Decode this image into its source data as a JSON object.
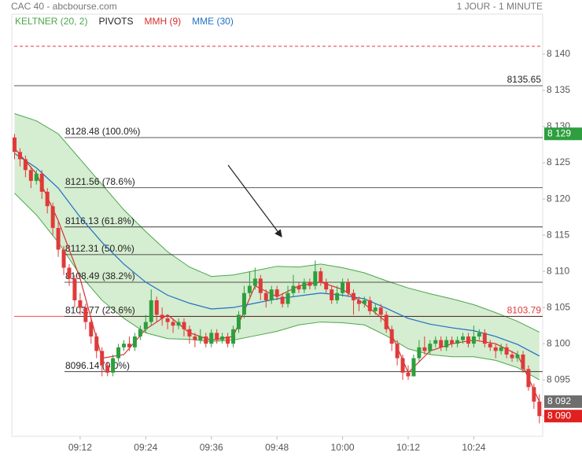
{
  "header": {
    "title": "CAC 40 - abcbourse.com",
    "period": "1 JOUR - 1 MINUTE"
  },
  "chart_data": {
    "type": "candlestick",
    "up_color": "#2e9e3e",
    "down_color": "#e03a3a",
    "x": [
      0,
      1,
      2,
      3,
      4,
      5,
      6,
      7,
      8,
      9,
      10,
      11,
      12,
      13,
      14,
      15,
      16,
      17,
      18,
      19,
      20,
      21,
      22,
      23,
      24,
      25,
      26,
      27,
      28,
      29,
      30,
      31,
      32,
      33,
      34,
      35,
      36,
      37,
      38,
      39,
      40,
      41,
      42,
      43,
      44,
      45,
      46,
      47,
      48,
      49,
      50,
      51,
      52,
      53,
      54,
      55,
      56,
      57,
      58,
      59,
      60,
      61,
      62,
      63,
      64,
      65,
      66,
      67,
      68,
      69,
      70,
      71,
      72,
      73,
      74,
      75,
      76,
      77,
      78,
      79,
      80,
      81,
      82,
      83,
      84,
      85,
      86,
      87,
      88,
      89,
      90,
      91,
      92,
      93,
      94,
      95,
      96
    ],
    "open": [
      8128.5,
      8126.5,
      8125.5,
      8124,
      8122.5,
      8123.5,
      8121,
      8119,
      8116,
      8113,
      8110.5,
      8109,
      8106,
      8105,
      8103,
      8101,
      8099,
      8097,
      8096,
      8098,
      8099.5,
      8100,
      8099.5,
      8101,
      8102,
      8103,
      8106,
      8104,
      8103.5,
      8103,
      8102.5,
      8103,
      8102,
      8101,
      8100.5,
      8101,
      8100,
      8101.5,
      8100.5,
      8101,
      8100,
      8102,
      8104,
      8107,
      8108,
      8109,
      8107,
      8106,
      8107.5,
      8106.5,
      8105.5,
      8107,
      8108,
      8107.5,
      8108.5,
      8108,
      8110,
      8108.5,
      8107.5,
      8106,
      8107,
      8108.5,
      8107,
      8106,
      8105.5,
      8106,
      8104.5,
      8105,
      8104,
      8102,
      8100,
      8098,
      8096,
      8095.5,
      8098,
      8099.5,
      8099,
      8100,
      8100.5,
      8099.5,
      8100.5,
      8100,
      8100.5,
      8101,
      8100,
      8101,
      8101.5,
      8100,
      8099.5,
      8099,
      8099.5,
      8098.5,
      8098,
      8098.5,
      8096.5,
      8094,
      8092
    ],
    "high": [
      8129,
      8127,
      8126,
      8124.5,
      8124,
      8124,
      8121.5,
      8119.5,
      8117,
      8113.5,
      8111,
      8109.5,
      8107,
      8105.5,
      8103.5,
      8101.5,
      8099.5,
      8097.5,
      8098.5,
      8100,
      8100.5,
      8101,
      8101.5,
      8102.5,
      8104,
      8107.5,
      8106.5,
      8105,
      8104,
      8103.5,
      8103.5,
      8103.5,
      8102.5,
      8101.5,
      8102,
      8101.5,
      8102,
      8102,
      8101.5,
      8101.5,
      8102.5,
      8104.5,
      8108,
      8110,
      8110.5,
      8109.5,
      8107.5,
      8108,
      8108,
      8107,
      8108,
      8109.5,
      8108.5,
      8109,
      8109,
      8111.5,
      8110.5,
      8109,
      8108,
      8108,
      8109,
      8109,
      8107.5,
      8106.5,
      8106.5,
      8106.5,
      8105.5,
      8105.5,
      8104.5,
      8102.5,
      8100.5,
      8098.5,
      8097,
      8098.5,
      8100.5,
      8101,
      8100.5,
      8101,
      8101,
      8101,
      8101,
      8101,
      8101.5,
      8101.5,
      8102.5,
      8102,
      8102,
      8100.5,
      8100,
      8100,
      8100,
      8099,
      8099,
      8099,
      8097,
      8094.5,
      8093
    ],
    "low": [
      8125.5,
      8124.5,
      8123,
      8121.5,
      8122,
      8120,
      8118,
      8115,
      8112,
      8109.5,
      8108,
      8105,
      8104,
      8102,
      8100,
      8098,
      8095.5,
      8095.5,
      8095.5,
      8097.5,
      8099,
      8099,
      8099,
      8100.5,
      8101.5,
      8102.5,
      8103,
      8102.5,
      8102,
      8101.5,
      8102,
      8101,
      8100,
      8099.5,
      8100,
      8099.5,
      8099.5,
      8100,
      8100,
      8099.5,
      8099.5,
      8101.5,
      8103.5,
      8106.5,
      8107.5,
      8106,
      8105,
      8105.5,
      8106,
      8105,
      8105,
      8106.5,
      8107,
      8107,
      8107.5,
      8107.5,
      8108,
      8107,
      8105.5,
      8105.5,
      8106.5,
      8106.5,
      8104,
      8104.5,
      8105,
      8104,
      8104,
      8103,
      8101.5,
      8099,
      8097,
      8095,
      8095,
      8095.5,
      8097.5,
      8098.5,
      8098.5,
      8099.5,
      8099,
      8099,
      8099.5,
      8099.5,
      8100,
      8099.5,
      8099.5,
      8100.5,
      8099.5,
      8099,
      8098,
      8098.5,
      8098,
      8097.5,
      8097.5,
      8096,
      8093.5,
      8091,
      8089
    ],
    "close": [
      8126.5,
      8125.5,
      8124,
      8122.5,
      8123.5,
      8121,
      8119,
      8116,
      8113,
      8110.5,
      8109,
      8106,
      8105,
      8103,
      8101,
      8099,
      8097,
      8096,
      8098,
      8099.5,
      8100,
      8099.5,
      8101,
      8102,
      8103,
      8106,
      8104,
      8103.5,
      8103,
      8102.5,
      8103,
      8102,
      8101,
      8100.5,
      8101,
      8100,
      8101.5,
      8100.5,
      8101,
      8100,
      8102,
      8104,
      8107,
      8108,
      8109,
      8107,
      8106,
      8107.5,
      8106.5,
      8105.5,
      8107,
      8108,
      8107.5,
      8108.5,
      8108,
      8110,
      8108.5,
      8107.5,
      8106,
      8107,
      8108.5,
      8107,
      8106,
      8105.5,
      8106,
      8104.5,
      8105,
      8104,
      8102,
      8100,
      8098,
      8096,
      8095.5,
      8098,
      8099.5,
      8099,
      8100,
      8100.5,
      8099.5,
      8100.5,
      8100,
      8100.5,
      8101,
      8100,
      8101,
      8101.5,
      8100,
      8099.5,
      8099,
      8099.5,
      8098.5,
      8098,
      8098.5,
      8096.5,
      8094,
      8092,
      8090
    ],
    "xlim": [
      -0.5,
      96.6
    ],
    "xticks": [
      {
        "value": 12,
        "label": "09:12"
      },
      {
        "value": 24,
        "label": "09:24"
      },
      {
        "value": 36,
        "label": "09:36"
      },
      {
        "value": 48,
        "label": "09:48"
      },
      {
        "value": 60,
        "label": "10:00"
      },
      {
        "value": 72,
        "label": "10:12"
      },
      {
        "value": 84,
        "label": "10:24"
      }
    ],
    "ylim": [
      8087.2,
      8143.15
    ],
    "yticks": [
      {
        "value": 8090,
        "label": "8 090"
      },
      {
        "value": 8095,
        "label": "8 095"
      },
      {
        "value": 8100,
        "label": "8 100"
      },
      {
        "value": 8105,
        "label": "8 105"
      },
      {
        "value": 8110,
        "label": "8 110"
      },
      {
        "value": 8115,
        "label": "8 115"
      },
      {
        "value": 8120,
        "label": "8 120"
      },
      {
        "value": 8125,
        "label": "8 125"
      },
      {
        "value": 8130,
        "label": "8 130"
      },
      {
        "value": 8135,
        "label": "8 135"
      },
      {
        "value": 8140,
        "label": "8 140"
      }
    ],
    "keltner": {
      "name": "KELTNER (20, 2)",
      "color": "#4ca64c",
      "fill": "#cbe8c4",
      "x": [
        0,
        4,
        8,
        12,
        16,
        20,
        24,
        28,
        32,
        36,
        40,
        44,
        48,
        52,
        56,
        60,
        64,
        68,
        72,
        76,
        80,
        84,
        88,
        92,
        96
      ],
      "upper": [
        8131.8,
        8130.8,
        8129,
        8125.5,
        8122,
        8118.5,
        8115.5,
        8112.7,
        8110.6,
        8109.3,
        8109.5,
        8110.1,
        8110.7,
        8110.6,
        8111,
        8110.5,
        8109.8,
        8108.7,
        8107.7,
        8106.9,
        8106.2,
        8105.4,
        8104.3,
        8103.1,
        8101.6
      ],
      "lower": [
        8120.8,
        8117.8,
        8114,
        8109.5,
        8106,
        8103.5,
        8101.5,
        8100.7,
        8100.6,
        8100.3,
        8100.5,
        8101.1,
        8101.7,
        8102.6,
        8103,
        8102.9,
        8102.6,
        8101.1,
        8099.3,
        8098.5,
        8098.2,
        8098.2,
        8097.7,
        8096.7,
        8095
      ]
    },
    "series": [
      {
        "name": "MMH (9)",
        "color": "#d32f2f",
        "x": [
          0,
          4,
          8,
          12,
          16,
          20,
          24,
          28,
          32,
          36,
          40,
          44,
          48,
          52,
          56,
          60,
          64,
          68,
          72,
          76,
          80,
          84,
          88,
          92,
          96
        ],
        "values": [
          8127,
          8123.5,
          8117,
          8109,
          8098,
          8098.5,
          8102,
          8104,
          8101.5,
          8100.5,
          8101,
          8108,
          8106.5,
          8108,
          8108.5,
          8107.5,
          8105.5,
          8103,
          8096,
          8099,
          8100,
          8100.5,
          8100,
          8098.5,
          8092
        ]
      },
      {
        "name": "MME (30)",
        "color": "#1f6fc5",
        "x": [
          0,
          4,
          8,
          12,
          16,
          20,
          24,
          28,
          32,
          36,
          40,
          44,
          48,
          52,
          56,
          60,
          64,
          68,
          72,
          76,
          80,
          84,
          88,
          92,
          96
        ],
        "values": [
          8126.3,
          8124.3,
          8121.5,
          8117.5,
          8114,
          8111,
          8108.5,
          8106.7,
          8105.6,
          8104.8,
          8105,
          8105.6,
          8106.2,
          8106.6,
          8107,
          8106.7,
          8106.2,
          8104.9,
          8103.5,
          8102.7,
          8102.2,
          8101.8,
          8101,
          8099.9,
          8098.3
        ]
      }
    ],
    "pivots": {
      "name": "PIVOTS",
      "color": "#222",
      "levels": [
        {
          "value": 8128.48,
          "label": "8128.48 (100.0%)"
        },
        {
          "value": 8121.56,
          "label": "8121.56 (78.6%)"
        },
        {
          "value": 8116.13,
          "label": "8116.13 (61.8%)"
        },
        {
          "value": 8112.31,
          "label": "8112.31 (50.0%)"
        },
        {
          "value": 8108.49,
          "label": "8108.49 (38.2%)"
        },
        {
          "value": 8103.77,
          "label": "8103.77 (23.6%)"
        },
        {
          "value": 8096.14,
          "label": "8096.14 (0.0%)"
        }
      ]
    },
    "levels": [
      {
        "value": 8135.65,
        "color": "#222"
      },
      {
        "value": 8103.79,
        "color": "#e03a3a"
      }
    ],
    "dashed_level": {
      "value": 8141.1,
      "color": "#e03a3a"
    },
    "price_tags": [
      {
        "value": 8129,
        "label": "8 129",
        "color": "#2e9e3e"
      },
      {
        "value": 8092,
        "label": "8 092",
        "color": "#6e6e6e"
      },
      {
        "value": 8090,
        "label": "8 090",
        "color": "#e02020"
      }
    ]
  }
}
